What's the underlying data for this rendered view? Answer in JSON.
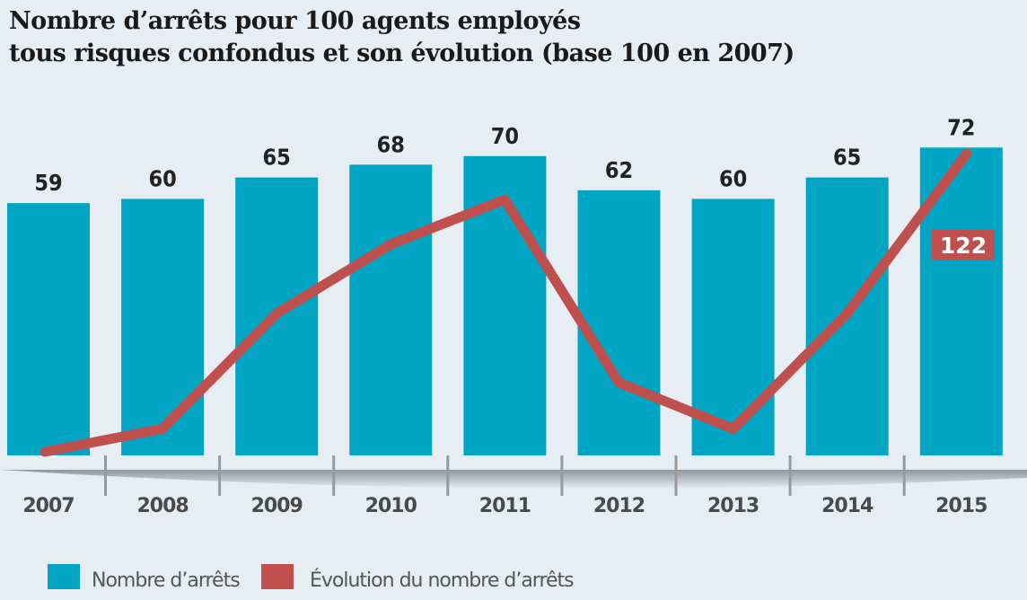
{
  "chart_data": {
    "type": "bar+line",
    "title": "Nombre d’arrêts pour 100 agents employés",
    "subtitle": "tous risques confondus et son évolution (base 100 en 2007)",
    "categories": [
      "2007",
      "2008",
      "2009",
      "2010",
      "2011",
      "2012",
      "2013",
      "2014",
      "2015"
    ],
    "series": [
      {
        "name": "Nombre d’arrêts",
        "type": "bar",
        "color": "#00a5c4",
        "values": [
          59,
          60,
          65,
          68,
          70,
          62,
          60,
          65,
          72
        ],
        "data_labels": true
      },
      {
        "name": "Évolution du nombre d’arrêts",
        "type": "line",
        "color": "#c0504d",
        "values": [
          100,
          101.7,
          110.2,
          115.3,
          118.6,
          105.1,
          101.7,
          110.2,
          122
        ],
        "labeled_point": {
          "category": "2015",
          "label": "122"
        }
      }
    ],
    "legend": {
      "placement": "bottom-left",
      "items": [
        "Nombre d’arrêts",
        "Évolution du nombre d’arrêts"
      ]
    },
    "grid": false
  }
}
